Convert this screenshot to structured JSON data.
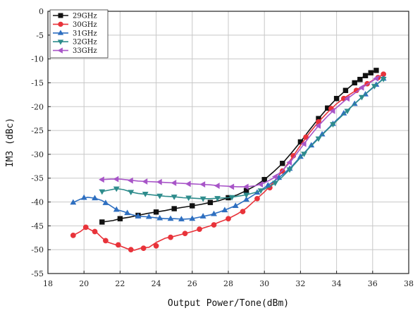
{
  "chart_data": {
    "type": "line",
    "title": "",
    "xlabel": "Output Power/Tone(dBm)",
    "ylabel": "IM3 (dBc)",
    "xlim": [
      18,
      38
    ],
    "ylim": [
      -55,
      0
    ],
    "xticks": [
      18,
      20,
      22,
      24,
      26,
      28,
      30,
      32,
      34,
      36,
      38
    ],
    "yticks": [
      0,
      -5,
      -10,
      -15,
      -20,
      -25,
      -30,
      -35,
      -40,
      -45,
      -50,
      -55
    ],
    "grid": true,
    "legend_position": "top-left",
    "series": [
      {
        "name": "29GHz",
        "color": "#111111",
        "marker": "square",
        "line": [
          [
            21.0,
            -44.2
          ],
          [
            21.6,
            -43.9
          ],
          [
            22.0,
            -43.5
          ],
          [
            22.5,
            -43.2
          ],
          [
            23.0,
            -42.8
          ],
          [
            23.5,
            -42.4
          ],
          [
            24.0,
            -42.1
          ],
          [
            24.5,
            -41.8
          ],
          [
            25.0,
            -41.4
          ],
          [
            25.5,
            -41.1
          ],
          [
            26.0,
            -40.8
          ],
          [
            26.5,
            -40.5
          ],
          [
            27.0,
            -40.1
          ],
          [
            27.5,
            -39.7
          ],
          [
            28.0,
            -39.1
          ],
          [
            28.5,
            -38.5
          ],
          [
            29.0,
            -37.6
          ],
          [
            29.5,
            -36.6
          ],
          [
            30.0,
            -35.3
          ],
          [
            30.5,
            -33.7
          ],
          [
            31.0,
            -31.9
          ],
          [
            31.5,
            -29.7
          ],
          [
            32.0,
            -27.4
          ],
          [
            32.5,
            -24.9
          ],
          [
            33.0,
            -22.5
          ],
          [
            33.5,
            -20.3
          ],
          [
            34.0,
            -18.3
          ],
          [
            34.5,
            -16.6
          ],
          [
            35.0,
            -15.0
          ],
          [
            35.5,
            -13.7
          ],
          [
            36.0,
            -12.7
          ],
          [
            36.3,
            -12.3
          ]
        ],
        "points": [
          [
            21.0,
            -44.2
          ],
          [
            22.0,
            -43.5
          ],
          [
            23.0,
            -42.8
          ],
          [
            24.0,
            -42.1
          ],
          [
            25.0,
            -41.4
          ],
          [
            26.0,
            -40.8
          ],
          [
            27.0,
            -40.1
          ],
          [
            28.0,
            -39.1
          ],
          [
            29.0,
            -37.6
          ],
          [
            30.0,
            -35.3
          ],
          [
            31.0,
            -31.9
          ],
          [
            32.0,
            -27.4
          ],
          [
            33.0,
            -22.5
          ],
          [
            33.5,
            -20.3
          ],
          [
            34.0,
            -18.3
          ],
          [
            34.5,
            -16.6
          ],
          [
            35.0,
            -15.0
          ],
          [
            35.3,
            -14.3
          ],
          [
            35.6,
            -13.5
          ],
          [
            35.9,
            -12.9
          ],
          [
            36.2,
            -12.4
          ]
        ]
      },
      {
        "name": "30GHz",
        "color": "#e8333a",
        "marker": "circle",
        "line": [
          [
            19.4,
            -47.0
          ],
          [
            19.8,
            -46.2
          ],
          [
            20.1,
            -45.3
          ],
          [
            20.4,
            -45.9
          ],
          [
            20.7,
            -46.4
          ],
          [
            21.0,
            -47.5
          ],
          [
            21.3,
            -48.4
          ],
          [
            21.7,
            -48.9
          ],
          [
            22.0,
            -49.2
          ],
          [
            22.4,
            -49.8
          ],
          [
            22.8,
            -50.1
          ],
          [
            23.2,
            -49.6
          ],
          [
            23.6,
            -49.5
          ],
          [
            24.0,
            -48.5
          ],
          [
            24.5,
            -47.6
          ],
          [
            25.0,
            -47.2
          ],
          [
            25.5,
            -46.7
          ],
          [
            26.0,
            -46.2
          ],
          [
            26.5,
            -45.6
          ],
          [
            27.0,
            -45.0
          ],
          [
            27.5,
            -44.2
          ],
          [
            28.0,
            -43.5
          ],
          [
            28.5,
            -42.5
          ],
          [
            29.0,
            -41.3
          ],
          [
            29.5,
            -39.6
          ],
          [
            30.0,
            -37.9
          ],
          [
            30.5,
            -35.9
          ],
          [
            31.0,
            -33.5
          ],
          [
            31.5,
            -30.9
          ],
          [
            32.0,
            -28.1
          ],
          [
            32.5,
            -25.5
          ],
          [
            33.0,
            -23.2
          ],
          [
            33.5,
            -21.2
          ],
          [
            34.0,
            -19.4
          ],
          [
            34.5,
            -18.0
          ],
          [
            35.0,
            -16.8
          ],
          [
            35.5,
            -15.6
          ],
          [
            36.0,
            -14.5
          ],
          [
            36.6,
            -13.2
          ]
        ],
        "points": [
          [
            19.4,
            -47.0
          ],
          [
            20.1,
            -45.3
          ],
          [
            20.6,
            -46.2
          ],
          [
            21.2,
            -48.1
          ],
          [
            21.9,
            -49.0
          ],
          [
            22.6,
            -50.0
          ],
          [
            23.3,
            -49.7
          ],
          [
            24.0,
            -49.2
          ],
          [
            24.8,
            -47.4
          ],
          [
            25.6,
            -46.6
          ],
          [
            26.4,
            -45.7
          ],
          [
            27.2,
            -44.8
          ],
          [
            28.0,
            -43.5
          ],
          [
            28.8,
            -42.0
          ],
          [
            29.6,
            -39.3
          ],
          [
            30.3,
            -37.0
          ],
          [
            31.0,
            -33.5
          ],
          [
            31.6,
            -30.3
          ],
          [
            32.3,
            -26.4
          ],
          [
            33.0,
            -23.2
          ],
          [
            33.7,
            -20.4
          ],
          [
            34.4,
            -18.3
          ],
          [
            35.1,
            -16.6
          ],
          [
            35.7,
            -15.2
          ],
          [
            36.3,
            -13.9
          ],
          [
            36.6,
            -13.2
          ]
        ]
      },
      {
        "name": "31GHz",
        "color": "#2e6fc0",
        "marker": "triangle-up",
        "line": [
          [
            19.4,
            -40.1
          ],
          [
            19.8,
            -39.4
          ],
          [
            20.2,
            -39.0
          ],
          [
            20.6,
            -39.2
          ],
          [
            21.0,
            -39.7
          ],
          [
            21.4,
            -40.6
          ],
          [
            21.8,
            -41.6
          ],
          [
            22.2,
            -42.0
          ],
          [
            22.6,
            -42.6
          ],
          [
            23.0,
            -43.0
          ],
          [
            23.5,
            -43.1
          ],
          [
            24.0,
            -43.3
          ],
          [
            24.5,
            -43.5
          ],
          [
            25.0,
            -43.5
          ],
          [
            25.5,
            -43.6
          ],
          [
            26.0,
            -43.5
          ],
          [
            26.5,
            -43.1
          ],
          [
            27.0,
            -42.7
          ],
          [
            27.5,
            -42.1
          ],
          [
            28.0,
            -41.4
          ],
          [
            28.5,
            -40.6
          ],
          [
            29.0,
            -39.5
          ],
          [
            29.5,
            -38.3
          ],
          [
            30.0,
            -37.0
          ],
          [
            30.5,
            -35.7
          ],
          [
            31.0,
            -34.3
          ],
          [
            31.5,
            -32.6
          ],
          [
            32.0,
            -30.5
          ],
          [
            32.5,
            -28.5
          ],
          [
            33.0,
            -26.5
          ],
          [
            33.5,
            -24.7
          ],
          [
            34.0,
            -22.8
          ],
          [
            34.5,
            -21.1
          ],
          [
            35.0,
            -19.4
          ],
          [
            35.5,
            -17.7
          ],
          [
            36.0,
            -16.1
          ],
          [
            36.6,
            -14.1
          ]
        ],
        "points": [
          [
            19.4,
            -40.1
          ],
          [
            20.0,
            -39.1
          ],
          [
            20.6,
            -39.2
          ],
          [
            21.2,
            -40.2
          ],
          [
            21.8,
            -41.6
          ],
          [
            22.4,
            -42.3
          ],
          [
            23.0,
            -43.0
          ],
          [
            23.6,
            -43.1
          ],
          [
            24.2,
            -43.4
          ],
          [
            24.8,
            -43.5
          ],
          [
            25.4,
            -43.6
          ],
          [
            26.0,
            -43.5
          ],
          [
            26.6,
            -43.0
          ],
          [
            27.2,
            -42.5
          ],
          [
            27.8,
            -41.7
          ],
          [
            28.4,
            -40.8
          ],
          [
            29.0,
            -39.5
          ],
          [
            29.6,
            -38.0
          ],
          [
            30.2,
            -36.5
          ],
          [
            30.8,
            -34.9
          ],
          [
            31.4,
            -33.0
          ],
          [
            32.0,
            -30.5
          ],
          [
            32.6,
            -28.1
          ],
          [
            33.2,
            -25.8
          ],
          [
            33.8,
            -23.6
          ],
          [
            34.4,
            -21.4
          ],
          [
            35.0,
            -19.4
          ],
          [
            35.6,
            -17.4
          ],
          [
            36.2,
            -15.4
          ],
          [
            36.6,
            -14.1
          ]
        ]
      },
      {
        "name": "32GHz",
        "color": "#2e8c8c",
        "marker": "triangle-down",
        "line": [
          [
            21.0,
            -37.8
          ],
          [
            21.4,
            -37.5
          ],
          [
            21.8,
            -37.2
          ],
          [
            22.2,
            -37.4
          ],
          [
            22.6,
            -37.9
          ],
          [
            23.0,
            -38.2
          ],
          [
            23.5,
            -38.4
          ],
          [
            24.0,
            -38.6
          ],
          [
            24.5,
            -38.8
          ],
          [
            25.0,
            -38.9
          ],
          [
            25.5,
            -39.1
          ],
          [
            26.0,
            -39.2
          ],
          [
            26.5,
            -39.3
          ],
          [
            27.0,
            -39.3
          ],
          [
            27.5,
            -39.2
          ],
          [
            28.0,
            -39.1
          ],
          [
            28.5,
            -38.8
          ],
          [
            29.0,
            -38.5
          ],
          [
            29.5,
            -38.0
          ],
          [
            30.0,
            -37.3
          ],
          [
            30.5,
            -36.3
          ],
          [
            31.0,
            -34.7
          ],
          [
            31.5,
            -32.8
          ],
          [
            32.0,
            -30.7
          ],
          [
            32.5,
            -28.6
          ],
          [
            33.0,
            -26.7
          ],
          [
            33.5,
            -24.8
          ],
          [
            34.0,
            -23.0
          ],
          [
            34.5,
            -21.2
          ],
          [
            35.0,
            -19.4
          ],
          [
            35.5,
            -17.7
          ],
          [
            36.0,
            -16.0
          ],
          [
            36.6,
            -14.2
          ]
        ],
        "points": [
          [
            21.0,
            -37.8
          ],
          [
            21.8,
            -37.2
          ],
          [
            22.6,
            -37.9
          ],
          [
            23.4,
            -38.3
          ],
          [
            24.2,
            -38.7
          ],
          [
            25.0,
            -38.9
          ],
          [
            25.8,
            -39.1
          ],
          [
            26.6,
            -39.3
          ],
          [
            27.4,
            -39.2
          ],
          [
            28.2,
            -39.0
          ],
          [
            29.0,
            -38.5
          ],
          [
            29.8,
            -37.6
          ],
          [
            30.6,
            -36.0
          ],
          [
            31.4,
            -33.2
          ],
          [
            32.2,
            -29.9
          ],
          [
            33.0,
            -26.7
          ],
          [
            33.8,
            -23.7
          ],
          [
            34.6,
            -20.9
          ],
          [
            35.4,
            -18.0
          ],
          [
            36.1,
            -15.7
          ],
          [
            36.6,
            -14.2
          ]
        ]
      },
      {
        "name": "33GHz",
        "color": "#a855c8",
        "marker": "triangle-left",
        "line": [
          [
            21.0,
            -35.3
          ],
          [
            21.5,
            -35.2
          ],
          [
            22.0,
            -35.2
          ],
          [
            22.5,
            -35.4
          ],
          [
            23.0,
            -35.6
          ],
          [
            23.5,
            -35.7
          ],
          [
            24.0,
            -35.8
          ],
          [
            24.5,
            -35.9
          ],
          [
            25.0,
            -36.0
          ],
          [
            25.5,
            -36.1
          ],
          [
            26.0,
            -36.2
          ],
          [
            26.5,
            -36.3
          ],
          [
            27.0,
            -36.4
          ],
          [
            27.5,
            -36.6
          ],
          [
            28.0,
            -36.7
          ],
          [
            28.5,
            -36.8
          ],
          [
            29.0,
            -36.8
          ],
          [
            29.5,
            -36.6
          ],
          [
            30.0,
            -36.0
          ],
          [
            30.5,
            -35.0
          ],
          [
            31.0,
            -33.4
          ],
          [
            31.5,
            -31.3
          ],
          [
            32.0,
            -28.8
          ],
          [
            32.5,
            -26.3
          ],
          [
            33.0,
            -24.0
          ],
          [
            33.5,
            -22.0
          ],
          [
            34.0,
            -20.2
          ],
          [
            34.5,
            -18.6
          ],
          [
            35.0,
            -17.2
          ],
          [
            35.5,
            -15.8
          ],
          [
            36.0,
            -14.6
          ],
          [
            36.4,
            -13.6
          ]
        ],
        "points": [
          [
            21.0,
            -35.3
          ],
          [
            21.8,
            -35.2
          ],
          [
            22.6,
            -35.5
          ],
          [
            23.4,
            -35.7
          ],
          [
            24.2,
            -35.8
          ],
          [
            25.0,
            -36.0
          ],
          [
            25.8,
            -36.2
          ],
          [
            26.6,
            -36.3
          ],
          [
            27.4,
            -36.6
          ],
          [
            28.2,
            -36.8
          ],
          [
            29.0,
            -36.8
          ],
          [
            29.8,
            -36.3
          ],
          [
            30.6,
            -34.7
          ],
          [
            31.4,
            -31.7
          ],
          [
            32.2,
            -27.8
          ],
          [
            33.0,
            -24.0
          ],
          [
            33.8,
            -20.9
          ],
          [
            34.6,
            -18.3
          ],
          [
            35.4,
            -16.0
          ],
          [
            36.2,
            -14.1
          ]
        ]
      }
    ]
  }
}
